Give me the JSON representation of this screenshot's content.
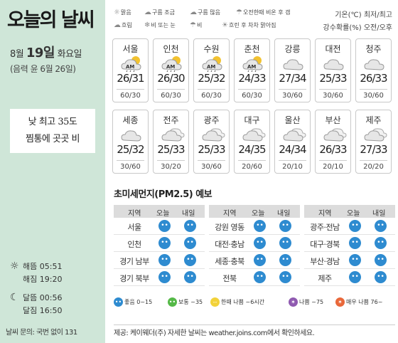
{
  "sidebar": {
    "title": "오늘의 날씨",
    "date_month": "8월 ",
    "date_day": "19일",
    "date_weekday": " 화요일",
    "lunar": "(음력 윤 6월 26일)",
    "headline_line1": "낮 최고 35도",
    "headline_line2": "찜통에 곳곳 비",
    "sunrise": "해뜸 05:51",
    "sunset": "해짐 19:20",
    "moonrise": "달뜸 00:56",
    "moonset": "달짐 16:50",
    "inquiry": "날씨 문의: 국번 없이 131"
  },
  "legend": {
    "items": [
      {
        "icon": "sun-icon",
        "label": "맑음"
      },
      {
        "icon": "cloud-little-icon",
        "label": "구름 조금"
      },
      {
        "icon": "cloud-much-icon",
        "label": "구름 많음"
      },
      {
        "icon": "shower-am-icon",
        "label": "오전한때 비온 후 갬"
      },
      {
        "icon": "overcast-icon",
        "label": "흐림"
      },
      {
        "icon": "rain-snow-icon",
        "label": "비 또는 눈"
      },
      {
        "icon": "rain-icon",
        "label": "비"
      },
      {
        "icon": "clearing-icon",
        "label": "흐린 후 차차 맑아짐"
      }
    ],
    "unit_temp": "기온(℃) 최저/최고",
    "unit_rain": "강수확률(%) 오전/오후"
  },
  "cities": [
    {
      "name": "서울",
      "temp": "26/31",
      "rain": "60/30",
      "icon": "am-shower-icon"
    },
    {
      "name": "인천",
      "temp": "26/30",
      "rain": "60/30",
      "icon": "am-shower-icon"
    },
    {
      "name": "수원",
      "temp": "25/32",
      "rain": "60/30",
      "icon": "am-shower-icon"
    },
    {
      "name": "춘천",
      "temp": "24/33",
      "rain": "60/30",
      "icon": "am-shower-icon"
    },
    {
      "name": "강릉",
      "temp": "27/34",
      "rain": "30/60",
      "icon": "cloudy-icon"
    },
    {
      "name": "대전",
      "temp": "25/33",
      "rain": "30/60",
      "icon": "cloudy-icon"
    },
    {
      "name": "청주",
      "temp": "26/33",
      "rain": "30/60",
      "icon": "cloudy-icon"
    },
    {
      "name": "세종",
      "temp": "25/32",
      "rain": "30/60",
      "icon": "cloudy-icon"
    },
    {
      "name": "전주",
      "temp": "25/33",
      "rain": "30/20",
      "icon": "partly-cloudy-icon"
    },
    {
      "name": "광주",
      "temp": "25/33",
      "rain": "30/60",
      "icon": "partly-cloudy-icon"
    },
    {
      "name": "대구",
      "temp": "24/35",
      "rain": "20/60",
      "icon": "partly-cloudy-icon"
    },
    {
      "name": "울산",
      "temp": "24/34",
      "rain": "20/10",
      "icon": "partly-cloudy-icon"
    },
    {
      "name": "부산",
      "temp": "26/33",
      "rain": "20/10",
      "icon": "partly-cloudy-icon"
    },
    {
      "name": "제주",
      "temp": "27/33",
      "rain": "20/20",
      "icon": "partly-cloudy-icon"
    }
  ],
  "pm": {
    "title": "초미세먼지(PM2.5) 예보",
    "header": {
      "region": "지역",
      "today": "오늘",
      "tomorrow": "내일"
    },
    "columns": [
      [
        {
          "region": "서울"
        },
        {
          "region": "인천"
        },
        {
          "region": "경기 남부"
        },
        {
          "region": "경기 북부"
        }
      ],
      [
        {
          "region": "강원 영동"
        },
        {
          "region": "대전·충남"
        },
        {
          "region": "세종·충북"
        },
        {
          "region": "전북"
        }
      ],
      [
        {
          "region": "광주·전남"
        },
        {
          "region": "대구·경북"
        },
        {
          "region": "부산·경남"
        },
        {
          "region": "제주"
        }
      ]
    ],
    "level_good": "좋음",
    "legend": [
      {
        "label": "좋음 0~15",
        "color": "#2e8bd0"
      },
      {
        "label": "보통 ~35",
        "color": "#55b948"
      },
      {
        "label": "한때 나쁨 ~6시간",
        "color": "#f2d23a"
      },
      {
        "label": "나쁨 ~75",
        "color": "#8f5ab0"
      },
      {
        "label": "매우 나쁨 76~",
        "color": "#e9683a"
      }
    ]
  },
  "provider": "제공: 케이웨더(주) 자세한 날씨는 weather.joins.com에서 확인하세요."
}
